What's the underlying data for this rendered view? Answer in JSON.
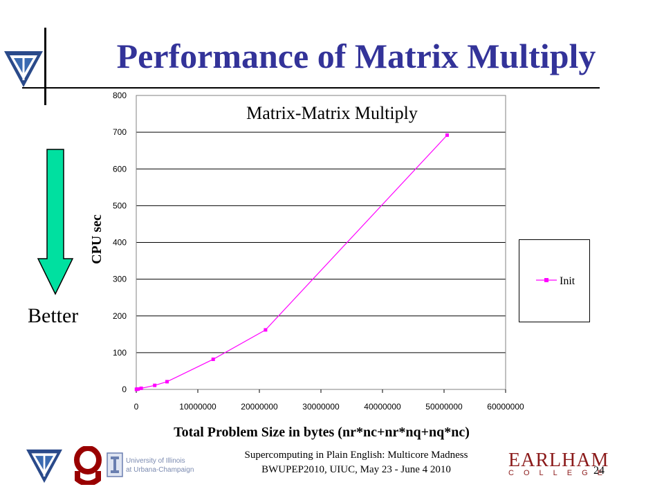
{
  "slide": {
    "title": "Performance of Matrix Multiply",
    "better_label": "Better",
    "footer_line1": "Supercomputing in Plain English: Multicore Madness",
    "footer_line2": "BWUPEP2010, UIUC, May 23 - June 4 2010",
    "page_number": "24",
    "logos": {
      "uiuc_line1": "University of Illinois",
      "uiuc_line2": "at Urbana-Champaign",
      "earlham_name": "EARLHAM",
      "earlham_sub": "COLLEGE"
    },
    "colors": {
      "title": "#333399",
      "arrow_fill": "#00e0a0",
      "series": "#ff00ff",
      "earlham": "#8b1a1a"
    }
  },
  "chart_data": {
    "type": "line",
    "title": "Matrix-Matrix Multiply",
    "xlabel": "Total Problem Size in bytes (nr*nc+nr*nq+nq*nc)",
    "ylabel": "CPU sec",
    "xlim": [
      0,
      60000000
    ],
    "ylim": [
      0,
      800
    ],
    "xticks": [
      "0",
      "10000000",
      "20000000",
      "30000000",
      "40000000",
      "50000000",
      "60000000"
    ],
    "yticks": [
      "0",
      "100",
      "200",
      "300",
      "400",
      "500",
      "600",
      "700",
      "800"
    ],
    "grid": "horizontal",
    "legend_position": "right",
    "series": [
      {
        "name": "Init",
        "x": [
          30000,
          120000,
          300000,
          800000,
          3000000,
          5000000,
          12500000,
          21000000,
          50500000
        ],
        "y": [
          0,
          1,
          1,
          3,
          11,
          21,
          82,
          162,
          692
        ]
      }
    ]
  }
}
